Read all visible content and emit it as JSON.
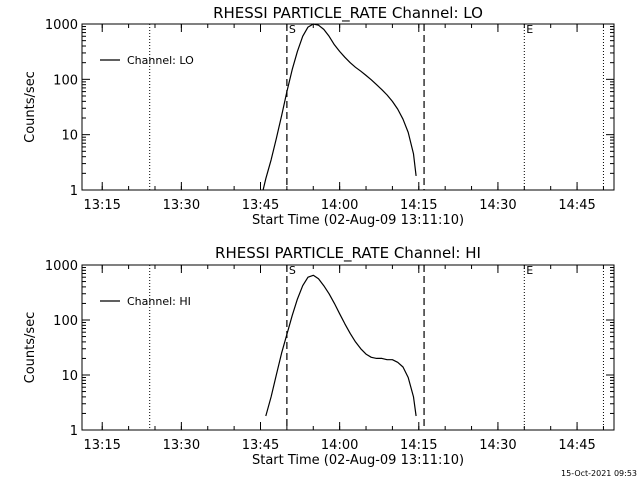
{
  "footer": {
    "timestamp": "15-Oct-2021 09:53"
  },
  "chart_data": [
    {
      "type": "line",
      "title": "RHESSI PARTICLE_RATE Channel: LO",
      "xlabel": "Start Time (02-Aug-09 13:11:10)",
      "ylabel": "Counts/sec",
      "xlim": [
        "13:11:10",
        "14:52:00"
      ],
      "yscale": "log",
      "ylim": [
        1,
        1000
      ],
      "x_ticks": [
        "13:15",
        "13:30",
        "13:45",
        "14:00",
        "14:15",
        "14:30",
        "14:45"
      ],
      "y_ticks": [
        "1",
        "10",
        "100",
        "1000"
      ],
      "legend": {
        "position": "top-left",
        "entries": [
          "Channel: LO"
        ]
      },
      "markers": [
        {
          "label": "S",
          "time": "13:50:00",
          "style": "dashed"
        },
        {
          "label": "",
          "time": "14:16:00",
          "style": "dashed"
        },
        {
          "label": "E",
          "time": "14:35:00",
          "style": "dotted"
        },
        {
          "label": "",
          "time": "13:24:00",
          "style": "dotted"
        },
        {
          "label": "",
          "time": "14:50:00",
          "style": "dotted"
        }
      ],
      "series": [
        {
          "name": "Channel: LO",
          "x": [
            "13:45:30",
            "13:46:00",
            "13:47:00",
            "13:48:00",
            "13:49:00",
            "13:50:00",
            "13:51:00",
            "13:52:00",
            "13:53:00",
            "13:54:00",
            "13:55:00",
            "13:56:00",
            "13:57:00",
            "13:58:00",
            "13:59:00",
            "14:00:00",
            "14:01:00",
            "14:02:00",
            "14:03:00",
            "14:04:00",
            "14:05:00",
            "14:06:00",
            "14:07:00",
            "14:08:00",
            "14:09:00",
            "14:10:00",
            "14:11:00",
            "14:12:00",
            "14:13:00",
            "14:14:00",
            "14:14:30"
          ],
          "values": [
            1.0,
            1.6,
            3.5,
            8.5,
            22,
            60,
            150,
            320,
            600,
            880,
            1000,
            950,
            800,
            600,
            420,
            320,
            250,
            200,
            165,
            140,
            118,
            98,
            80,
            65,
            52,
            40,
            29,
            19,
            11,
            4.5,
            1.8
          ]
        }
      ]
    },
    {
      "type": "line",
      "title": "RHESSI PARTICLE_RATE Channel: HI",
      "xlabel": "Start Time (02-Aug-09 13:11:10)",
      "ylabel": "Counts/sec",
      "xlim": [
        "13:11:10",
        "14:52:00"
      ],
      "yscale": "log",
      "ylim": [
        1,
        1000
      ],
      "x_ticks": [
        "13:15",
        "13:30",
        "13:45",
        "14:00",
        "14:15",
        "14:30",
        "14:45"
      ],
      "y_ticks": [
        "1",
        "10",
        "100",
        "1000"
      ],
      "legend": {
        "position": "top-left",
        "entries": [
          "Channel: HI"
        ]
      },
      "markers": [
        {
          "label": "S",
          "time": "13:50:00",
          "style": "dashed"
        },
        {
          "label": "",
          "time": "14:16:00",
          "style": "dashed"
        },
        {
          "label": "E",
          "time": "14:35:00",
          "style": "dotted"
        },
        {
          "label": "",
          "time": "13:24:00",
          "style": "dotted"
        },
        {
          "label": "",
          "time": "14:50:00",
          "style": "dotted"
        }
      ],
      "series": [
        {
          "name": "Channel: HI",
          "x": [
            "13:46:00",
            "13:47:00",
            "13:48:00",
            "13:49:00",
            "13:50:00",
            "13:51:00",
            "13:52:00",
            "13:53:00",
            "13:54:00",
            "13:55:00",
            "13:56:00",
            "13:57:00",
            "13:58:00",
            "13:59:00",
            "14:00:00",
            "14:01:00",
            "14:02:00",
            "14:03:00",
            "14:04:00",
            "14:05:00",
            "14:06:00",
            "14:07:00",
            "14:08:00",
            "14:09:00",
            "14:10:00",
            "14:11:00",
            "14:12:00",
            "14:13:00",
            "14:14:00",
            "14:14:30"
          ],
          "values": [
            1.8,
            4.0,
            10,
            25,
            55,
            120,
            240,
            420,
            600,
            650,
            560,
            420,
            300,
            200,
            130,
            85,
            57,
            40,
            30,
            24,
            21,
            20,
            20,
            19,
            19,
            17,
            14,
            9,
            4,
            1.8
          ]
        }
      ]
    }
  ]
}
